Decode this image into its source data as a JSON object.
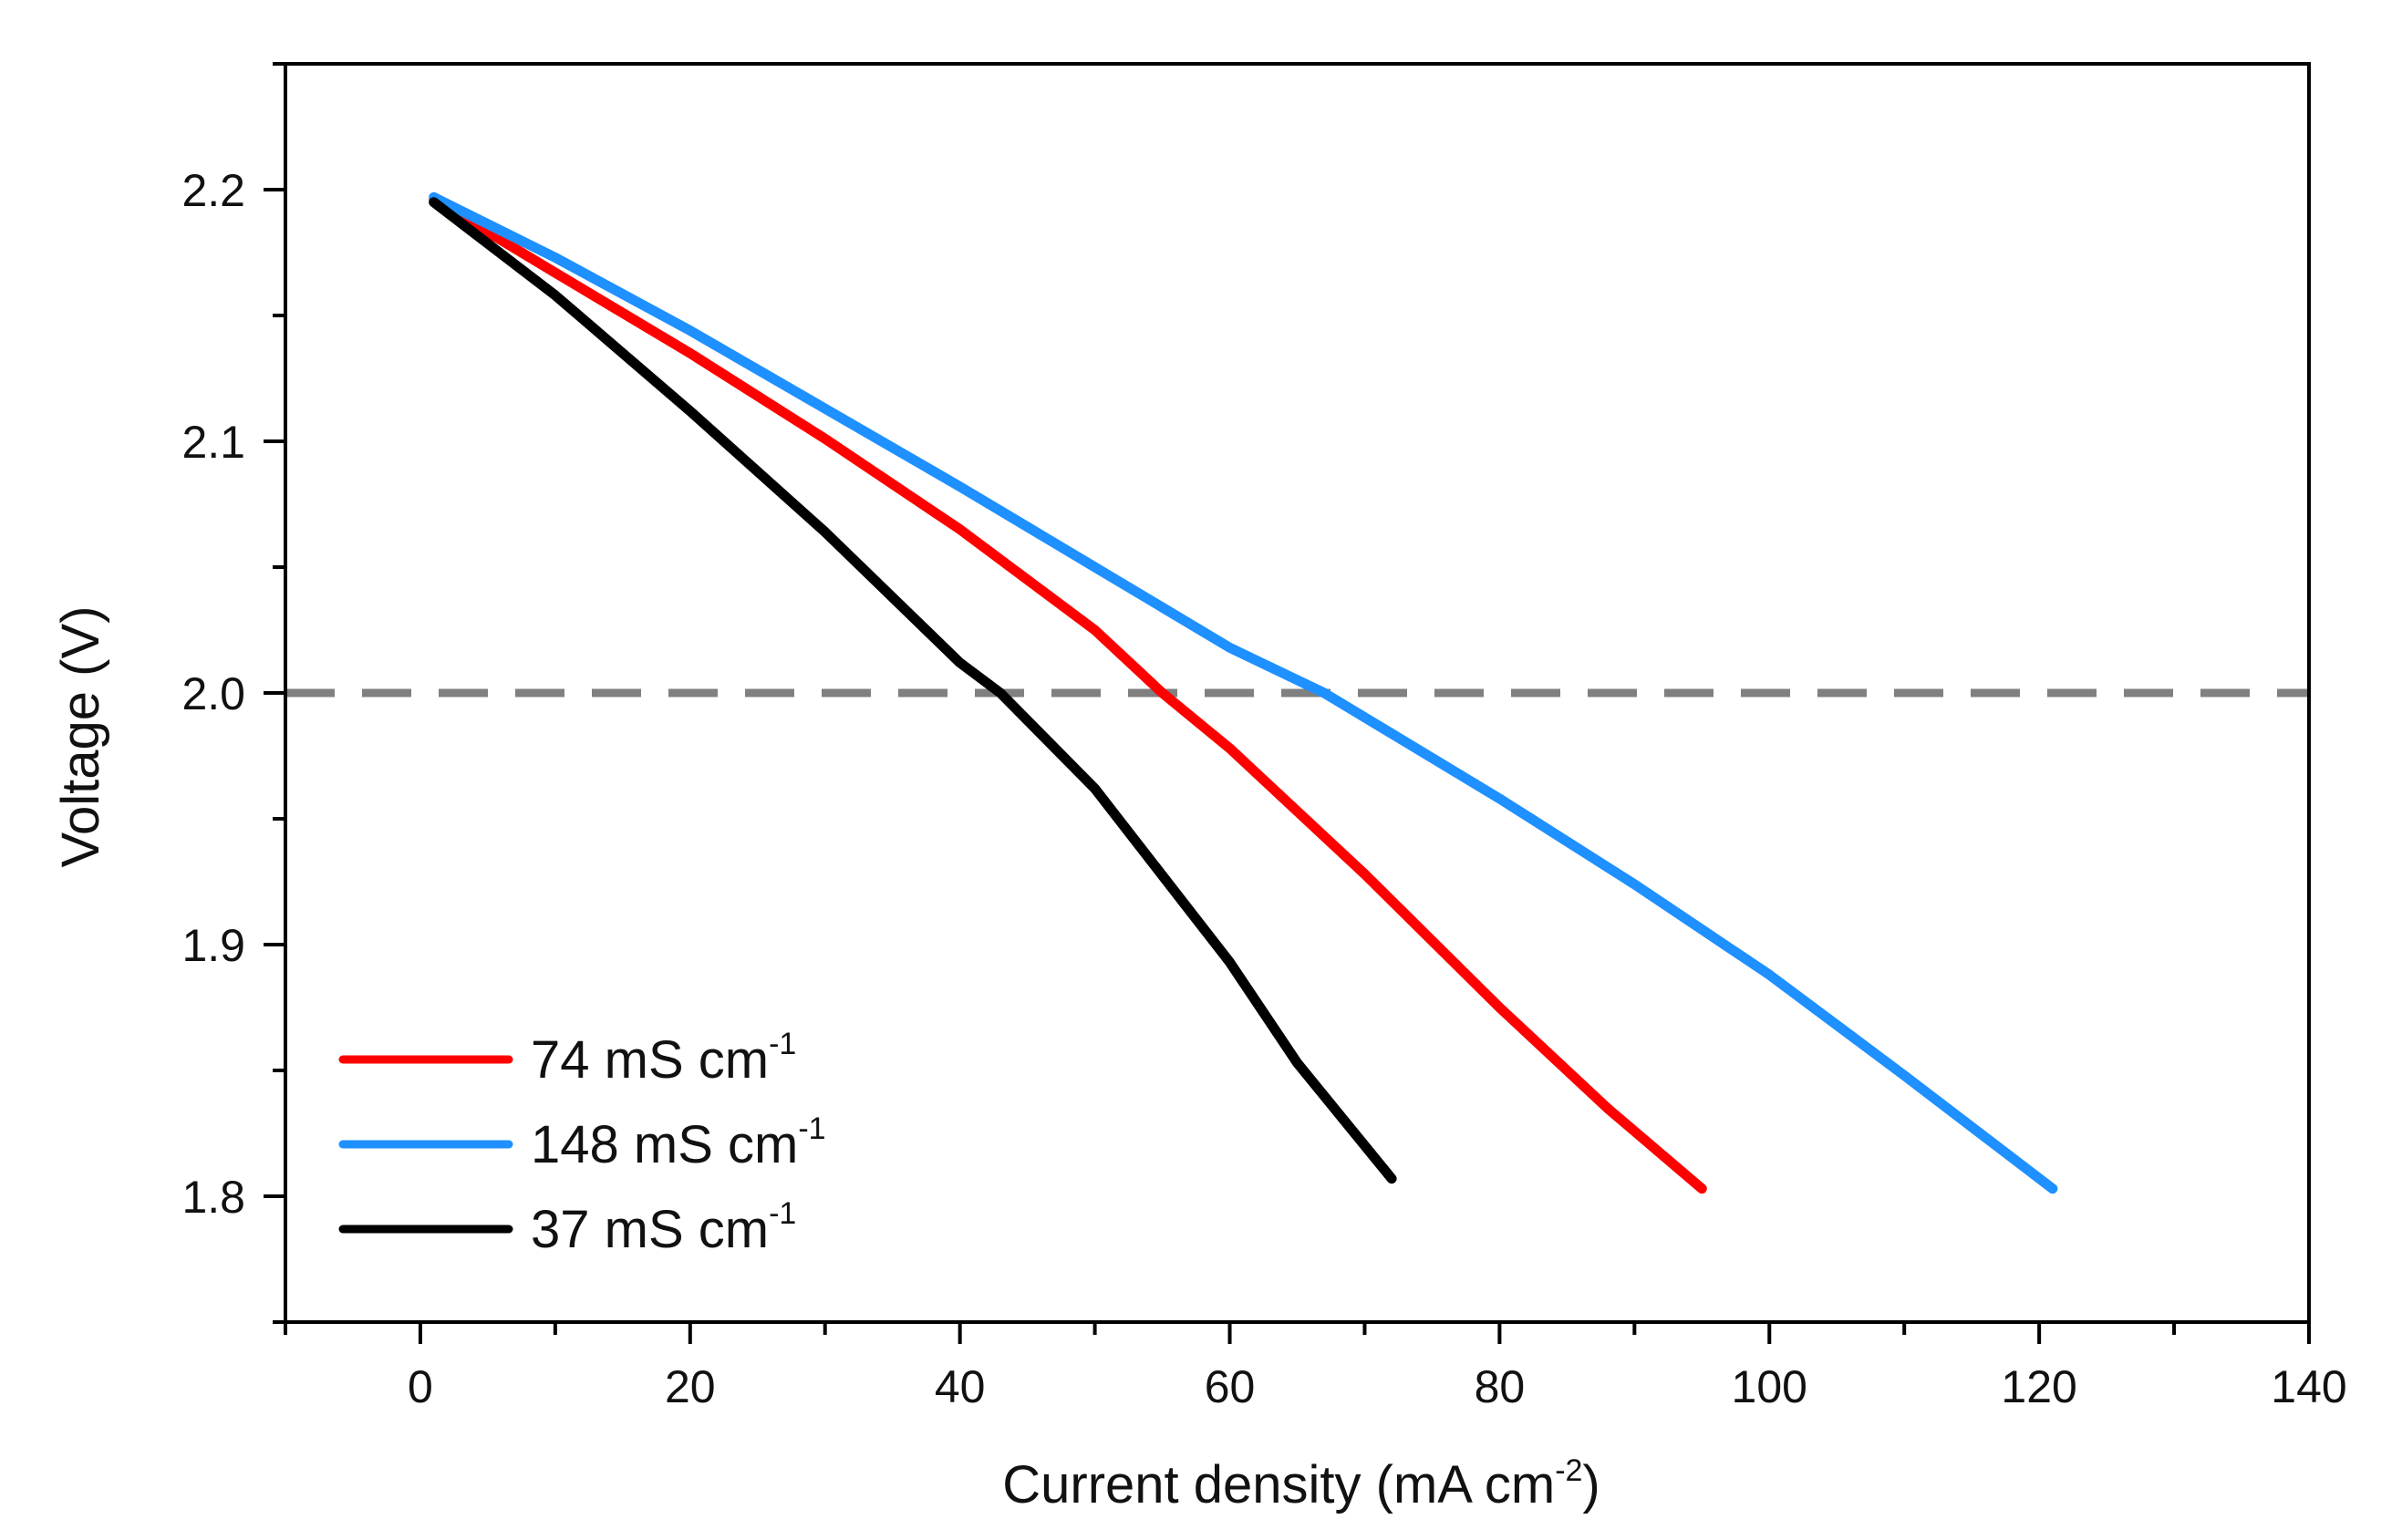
{
  "chart_data": {
    "type": "line",
    "title": "",
    "xlabel": {
      "text": "Current density (mA cm",
      "sup": "-2",
      "suffix": ")"
    },
    "ylabel": "Voltage (V)",
    "xlim": [
      -10,
      140
    ],
    "ylim": [
      1.75,
      2.25
    ],
    "x_major_ticks": [
      0,
      20,
      40,
      60,
      80,
      100,
      120,
      140
    ],
    "x_minor_ticks": [
      -10,
      10,
      30,
      50,
      70,
      90,
      110,
      130
    ],
    "x_tick_labels": [
      "0",
      "20",
      "40",
      "60",
      "80",
      "100",
      "120",
      "140"
    ],
    "y_major_ticks": [
      1.8,
      1.9,
      2.0,
      2.1,
      2.2
    ],
    "y_minor_ticks": [
      1.75,
      1.85,
      1.95,
      2.05,
      2.15,
      2.25
    ],
    "y_tick_labels": [
      "1.8",
      "1.9",
      "2.0",
      "2.1",
      "2.2"
    ],
    "grid": false,
    "legend_position": "bottom-left",
    "reference_line": {
      "axis": "y",
      "value": 2.0,
      "style": "dashed",
      "color": "#808080"
    },
    "series": [
      {
        "name": "74 mS cm",
        "unit_sup": "-1",
        "color": "#ff0000",
        "x": [
          1,
          10,
          20,
          30,
          40,
          50,
          55,
          60,
          70,
          80,
          88,
          95
        ],
        "y": [
          2.196,
          2.167,
          2.135,
          2.101,
          2.065,
          2.025,
          2.0,
          1.978,
          1.928,
          1.875,
          1.835,
          1.803
        ]
      },
      {
        "name": "148 mS cm",
        "unit_sup": "-1",
        "color": "#1e90ff",
        "x": [
          1,
          10,
          20,
          30,
          40,
          50,
          60,
          67,
          80,
          90,
          100,
          110,
          121
        ],
        "y": [
          2.197,
          2.173,
          2.144,
          2.113,
          2.082,
          2.05,
          2.018,
          2.0,
          1.958,
          1.924,
          1.888,
          1.848,
          1.803
        ]
      },
      {
        "name": "37 mS cm",
        "unit_sup": "-1",
        "color": "#000000",
        "x": [
          1,
          10,
          20,
          30,
          40,
          43,
          50,
          60,
          65,
          72
        ],
        "y": [
          2.195,
          2.158,
          2.112,
          2.064,
          2.012,
          2.0,
          1.962,
          1.893,
          1.853,
          1.807
        ]
      }
    ]
  }
}
